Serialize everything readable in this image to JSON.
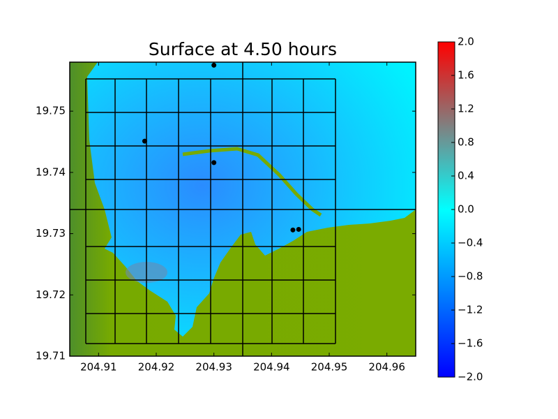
{
  "chart_data": {
    "type": "heatmap",
    "title": "Surface at 4.50 hours",
    "xlim": [
      204.905,
      204.965
    ],
    "xticks": [
      204.91,
      204.92,
      204.93,
      204.94,
      204.95,
      204.96
    ],
    "ylim": [
      19.71,
      19.758
    ],
    "yticks": [
      19.71,
      19.72,
      19.73,
      19.74,
      19.75
    ],
    "points": {
      "x": [
        204.93,
        204.918,
        204.93,
        204.9437,
        204.9447
      ],
      "y": [
        19.7575,
        19.7451,
        19.7416,
        19.7306,
        19.7307
      ],
      "color": "#000000"
    },
    "colorbar": {
      "clim": [
        -2,
        2
      ],
      "colors": [
        "#0000ff",
        "#0080ff",
        "#00ffff",
        "#808080",
        "#ff0000"
      ],
      "ticks": [
        {
          "value": -2,
          "label": "−2.0"
        },
        {
          "value": -1.6,
          "label": "−1.6"
        },
        {
          "value": -1.2,
          "label": "−1.2"
        },
        {
          "value": -0.8,
          "label": "−0.8"
        },
        {
          "value": -0.4,
          "label": "−0.4"
        },
        {
          "value": 0,
          "label": "0.0"
        },
        {
          "value": 0.4,
          "label": "0.4"
        },
        {
          "value": 0.8,
          "label": "0.8"
        },
        {
          "value": 1.2,
          "label": "1.2"
        },
        {
          "value": 1.6,
          "label": "1.6"
        },
        {
          "value": 2,
          "label": "2.0"
        }
      ]
    }
  }
}
